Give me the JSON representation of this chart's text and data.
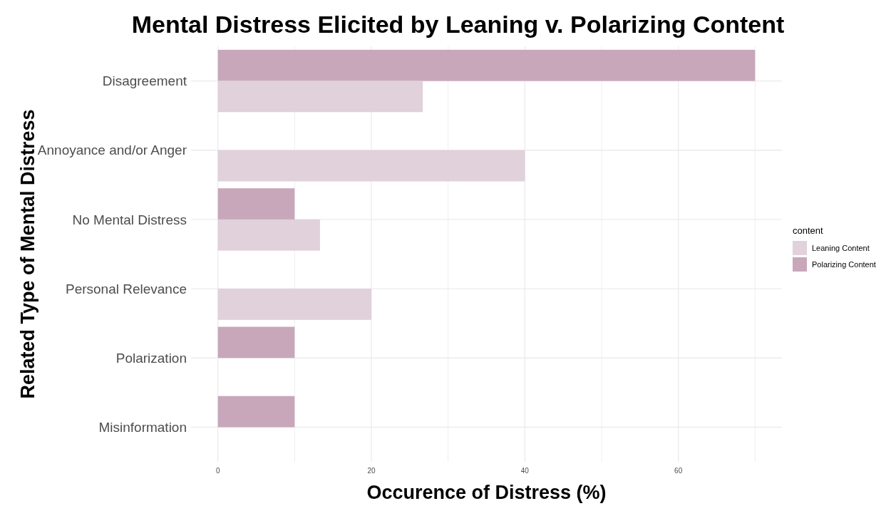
{
  "chart_data": {
    "type": "bar",
    "orientation": "horizontal",
    "title": "Mental Distress Elicited by Leaning v. Polarizing Content",
    "xlabel": "Occurence of Distress (%)",
    "ylabel": "Related Type of Mental Distress",
    "legend_title": "content",
    "legend": "right",
    "grid": true,
    "categories": [
      "Disagreement",
      "Annoyance and/or Anger",
      "No Mental Distress",
      "Personal Relevance",
      "Polarization",
      "Misinformation"
    ],
    "series": [
      {
        "name": "Polarizing Content",
        "color": "#c8a7bb",
        "values": [
          70,
          null,
          10,
          null,
          10,
          10
        ]
      },
      {
        "name": "Leaning Content",
        "color": "#e0d1da",
        "values": [
          26.7,
          40,
          13.3,
          20,
          null,
          null
        ]
      }
    ],
    "xlim": [
      -3.5,
      73.5
    ],
    "xticks": [
      0,
      {
        "value": 10,
        "label": null
      },
      20,
      {
        "value": 30,
        "label": null
      },
      40,
      {
        "value": 50,
        "label": null
      },
      60,
      {
        "value": 70,
        "label": null
      }
    ]
  }
}
